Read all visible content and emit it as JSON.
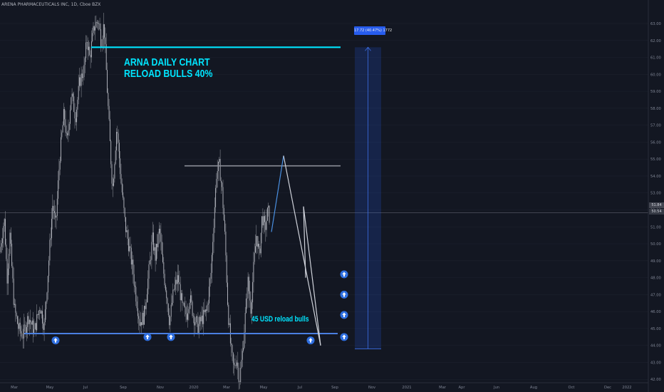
{
  "chart_data": {
    "type": "candlestick",
    "symbol": "ARENA PHARMACEUTICALS INC, 1D, Cboe BZX",
    "ylim": [
      41.8,
      63.8
    ],
    "y_ticks": [
      42,
      43,
      44,
      45,
      46,
      47,
      48,
      49,
      50,
      51,
      52,
      53,
      54,
      55,
      56,
      57,
      58,
      59,
      60,
      61,
      62,
      63
    ],
    "x_ticks": [
      "Mar",
      "May",
      "Jul",
      "Sep",
      "Nov",
      "2020",
      "Mar",
      "May",
      "Jul",
      "Sep",
      "Nov",
      "2021",
      "Mar",
      "Apr",
      "Jun",
      "Aug",
      "Oct",
      "Dec",
      "2022"
    ],
    "price_path": [
      [
        0,
        49.5
      ],
      [
        6,
        51.5
      ],
      [
        10,
        48.0
      ],
      [
        14,
        50.5
      ],
      [
        20,
        46.2
      ],
      [
        26,
        45.0
      ],
      [
        32,
        44.6
      ],
      [
        40,
        45.7
      ],
      [
        48,
        44.8
      ],
      [
        56,
        46.4
      ],
      [
        62,
        45.1
      ],
      [
        68,
        48.7
      ],
      [
        74,
        52.4
      ],
      [
        78,
        51.0
      ],
      [
        84,
        55.2
      ],
      [
        90,
        57.8
      ],
      [
        94,
        55.8
      ],
      [
        100,
        58.9
      ],
      [
        106,
        57.5
      ],
      [
        112,
        59.6
      ],
      [
        118,
        60.3
      ],
      [
        122,
        62.1
      ],
      [
        126,
        61.0
      ],
      [
        132,
        62.8
      ],
      [
        138,
        63.2
      ],
      [
        142,
        61.9
      ],
      [
        146,
        63.0
      ],
      [
        150,
        59.5
      ],
      [
        154,
        56.2
      ],
      [
        158,
        53.2
      ],
      [
        164,
        57.0
      ],
      [
        170,
        53.6
      ],
      [
        176,
        51.0
      ],
      [
        180,
        50.1
      ],
      [
        186,
        48.6
      ],
      [
        190,
        47.2
      ],
      [
        196,
        45.4
      ],
      [
        202,
        45.7
      ],
      [
        208,
        48.0
      ],
      [
        214,
        50.3
      ],
      [
        218,
        49.2
      ],
      [
        224,
        50.9
      ],
      [
        228,
        48.8
      ],
      [
        234,
        47.0
      ],
      [
        238,
        45.4
      ],
      [
        244,
        47.3
      ],
      [
        250,
        48.0
      ],
      [
        256,
        46.2
      ],
      [
        262,
        45.8
      ],
      [
        266,
        46.9
      ],
      [
        272,
        45.7
      ],
      [
        278,
        45.1
      ],
      [
        284,
        45.6
      ],
      [
        290,
        46.0
      ],
      [
        296,
        48.2
      ],
      [
        300,
        51.3
      ],
      [
        304,
        54.2
      ],
      [
        308,
        54.6
      ],
      [
        312,
        53.0
      ],
      [
        316,
        50.2
      ],
      [
        320,
        46.1
      ],
      [
        324,
        43.8
      ],
      [
        328,
        42.6
      ],
      [
        332,
        43.3
      ],
      [
        336,
        41.9
      ],
      [
        340,
        43.4
      ],
      [
        344,
        45.6
      ],
      [
        348,
        47.8
      ],
      [
        352,
        46.2
      ],
      [
        356,
        48.6
      ],
      [
        360,
        50.6
      ],
      [
        364,
        49.2
      ],
      [
        368,
        51.7
      ],
      [
        372,
        50.8
      ],
      [
        376,
        52.0
      ],
      [
        379,
        51.4
      ]
    ],
    "last_price": "51.84",
    "close_price": "50.54",
    "close_time": "06:14:06",
    "annotations": {
      "title_line1": "ARNA DAILY CHART",
      "title_line2": "RELOAD BULLS 40%",
      "reload_text": "45 USD reload bulls",
      "measure_label": "17.72 (40.47%) 1772"
    },
    "levels": {
      "resistance_top": 61.6,
      "resistance_mid": 54.6,
      "support": 44.7
    },
    "measure": {
      "from": 43.8,
      "to": 61.6
    },
    "projection": [
      {
        "from": [
          381,
          50.7
        ],
        "to": [
          398,
          55.2
        ],
        "color": "#4a90e2"
      },
      {
        "from": [
          398,
          55.2
        ],
        "to": [
          450,
          44.0
        ],
        "color": "#cfd2da"
      },
      {
        "from": [
          426,
          52.2
        ],
        "to": [
          429,
          48.0
        ],
        "color": "#cfd2da"
      },
      {
        "from": [
          426,
          52.2
        ],
        "to": [
          450,
          44.0
        ],
        "color": "#cfd2da"
      }
    ],
    "up_arrows": [
      [
        78,
        44.3
      ],
      [
        207,
        44.5
      ],
      [
        240,
        44.5
      ],
      [
        436,
        44.3
      ],
      [
        483,
        44.5
      ],
      [
        483,
        45.8
      ],
      [
        483,
        47.0
      ],
      [
        483,
        48.2
      ]
    ],
    "colors": {
      "background": "#131722",
      "candle": "#b7bac2",
      "cyan": "#00e5ff",
      "support": "#4a7fe0",
      "measure": "#2962ff",
      "grid": "#1f2430",
      "axis_text": "#7f8594"
    }
  }
}
